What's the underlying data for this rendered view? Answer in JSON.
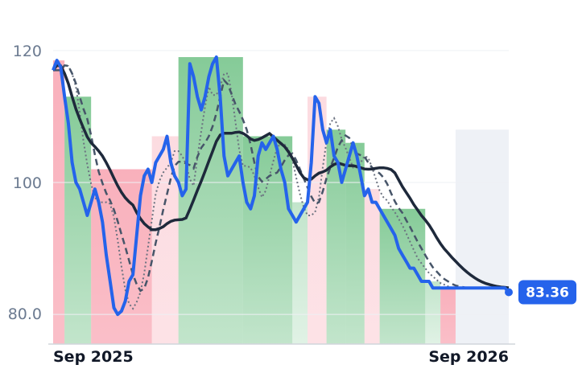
{
  "chart_data": {
    "type": "line",
    "title": "",
    "xlabel": "",
    "ylabel": "",
    "x_tick_labels": [
      "Sep 2025",
      "Sep 2026"
    ],
    "y_ticks": [
      80.0,
      100,
      120
    ],
    "y_tick_labels": [
      "80.0",
      "100",
      "120"
    ],
    "ylim": [
      75.5,
      124
    ],
    "xlim": [
      0,
      120
    ],
    "last_value_label": "83.36",
    "last_value": 83.36,
    "colors": {
      "price": "#2563eb",
      "sma_long": "#1e293b",
      "band_outer": "#6b7280",
      "band_inner": "#475569",
      "up_fill": "#34a853",
      "down_fill": "#f47085",
      "future_fill": "#eef1f6",
      "badge": "#2563eb"
    },
    "regime_segments": [
      {
        "start": 0,
        "end": 3,
        "regime": "down"
      },
      {
        "start": 3,
        "end": 10,
        "regime": "up"
      },
      {
        "start": 10,
        "end": 26,
        "regime": "down"
      },
      {
        "start": 26,
        "end": 33,
        "regime": "down_light"
      },
      {
        "start": 33,
        "end": 50,
        "regime": "up"
      },
      {
        "start": 50,
        "end": 63,
        "regime": "up"
      },
      {
        "start": 63,
        "end": 67,
        "regime": "up_light"
      },
      {
        "start": 67,
        "end": 72,
        "regime": "down_light"
      },
      {
        "start": 72,
        "end": 77,
        "regime": "up"
      },
      {
        "start": 77,
        "end": 82,
        "regime": "up"
      },
      {
        "start": 82,
        "end": 86,
        "regime": "down_light"
      },
      {
        "start": 86,
        "end": 98,
        "regime": "up"
      },
      {
        "start": 98,
        "end": 102,
        "regime": "up_light"
      },
      {
        "start": 102,
        "end": 106,
        "regime": "down"
      },
      {
        "start": 106,
        "end": 120,
        "regime": "future"
      }
    ],
    "series": [
      {
        "role": "price",
        "x": [
          0,
          1,
          2,
          3,
          4,
          5,
          6,
          7,
          8,
          9,
          10,
          11,
          12,
          13,
          14,
          15,
          16,
          17,
          18,
          19,
          20,
          21,
          22,
          23,
          24,
          25,
          26,
          27,
          28,
          29,
          30,
          31,
          32,
          33,
          34,
          35,
          36,
          37,
          38,
          39,
          40,
          41,
          42,
          43,
          44,
          45,
          46,
          47,
          48,
          49,
          50,
          51,
          52,
          53,
          54,
          55,
          56,
          57,
          58,
          59,
          60,
          61,
          62,
          63,
          64,
          65,
          66,
          67,
          68,
          69,
          70,
          71,
          72,
          73,
          74,
          75,
          76,
          77,
          78,
          79,
          80,
          81,
          82,
          83,
          84,
          85,
          86,
          87,
          88,
          89,
          90,
          91,
          92,
          93,
          94,
          95,
          96,
          97,
          98,
          99,
          100,
          101,
          102,
          103,
          104,
          105,
          106,
          107,
          108,
          109,
          110,
          111,
          112,
          113,
          114,
          115,
          116,
          117,
          118,
          119,
          120
        ],
        "y": [
          117,
          118.5,
          117.5,
          113,
          109,
          103,
          100,
          99,
          97,
          95,
          97,
          99,
          97,
          94,
          89,
          85,
          81,
          80,
          80.5,
          82,
          85,
          86,
          92,
          98,
          101,
          102,
          100,
          103,
          104,
          105,
          107,
          103,
          101,
          100,
          98,
          99,
          118,
          116,
          113,
          111,
          113,
          116,
          118,
          119,
          113,
          104,
          101,
          102,
          103,
          104,
          100,
          97,
          96,
          98,
          104,
          106,
          105,
          106,
          107,
          105,
          102,
          100,
          96,
          95,
          94,
          95,
          96,
          97,
          103,
          113,
          112,
          108,
          106,
          108,
          104,
          103,
          100,
          102,
          104,
          106,
          104,
          101,
          98,
          99,
          97,
          97,
          96,
          95,
          94,
          93,
          92,
          90,
          89,
          88,
          87,
          87,
          86,
          85,
          85,
          85,
          84,
          84,
          84,
          84,
          84,
          84,
          84,
          84,
          84,
          84,
          84,
          84,
          84,
          84,
          84,
          84,
          84,
          84,
          84,
          84,
          83.36
        ]
      }
    ]
  }
}
